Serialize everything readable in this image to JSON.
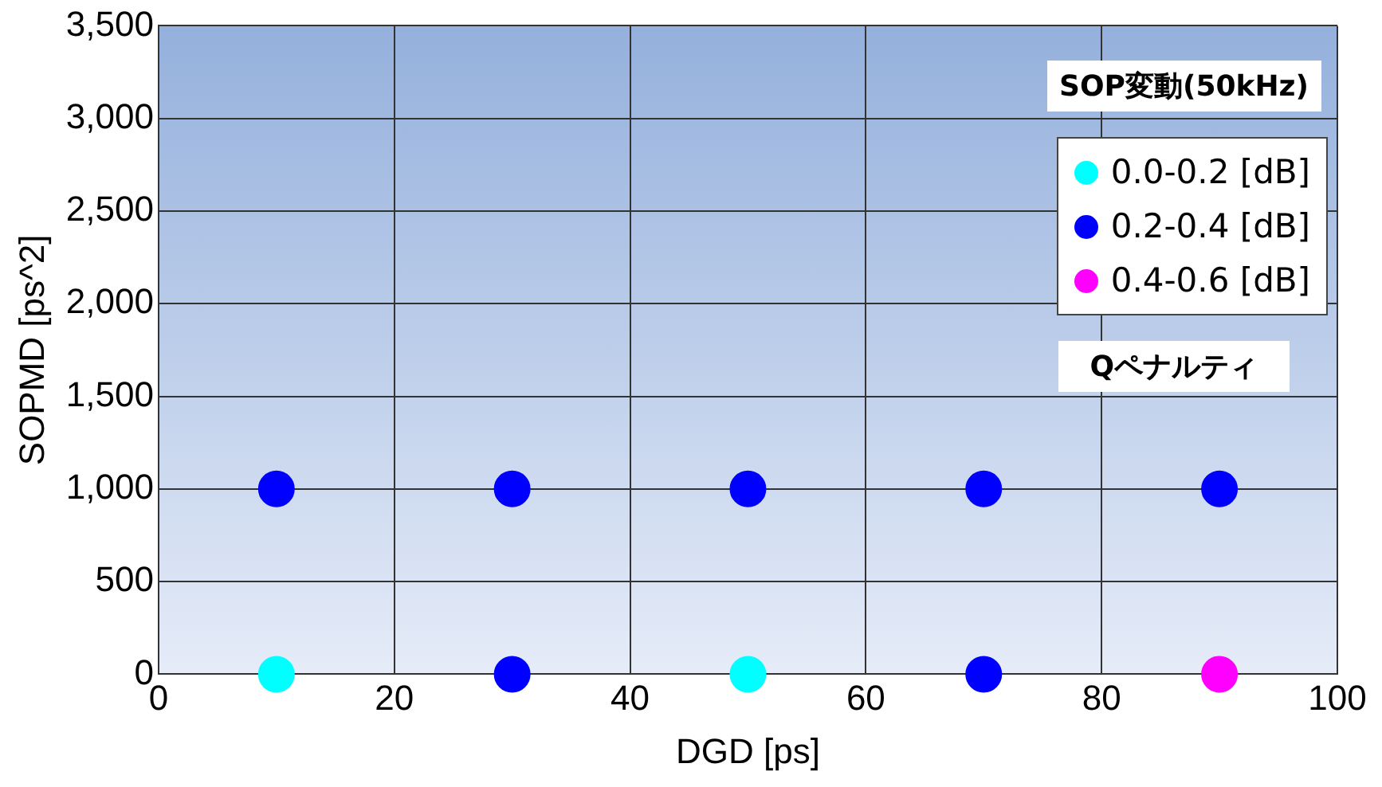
{
  "chart_data": {
    "type": "scatter",
    "xlabel": "DGD [ps]",
    "ylabel": "SOPMD [ps^2]",
    "annotations": [
      "SOP変動(50kHz)"
    ],
    "legend_title": "Qペナルティ",
    "series": [
      {
        "name": "0.0-0.2 [dB]",
        "color": "#00ffff",
        "x": [
          10,
          50
        ],
        "values": [
          0,
          0
        ]
      },
      {
        "name": "0.2-0.4 [dB]",
        "color": "#0000ff",
        "x": [
          10,
          30,
          50,
          70,
          90,
          30,
          70
        ],
        "values": [
          1000,
          1000,
          1000,
          1000,
          1000,
          0,
          0
        ]
      },
      {
        "name": "0.4-0.6 [dB]",
        "color": "#ff00ff",
        "x": [
          90
        ],
        "values": [
          0
        ]
      }
    ],
    "xlim": [
      0,
      100
    ],
    "xticks": [
      0,
      20,
      40,
      60,
      80,
      100
    ],
    "ylim": [
      0,
      3500
    ],
    "yticks": [
      0,
      {
        "value": 500,
        "label": "500"
      },
      {
        "value": 1000,
        "label": "1,000"
      },
      {
        "value": 1500,
        "label": "1,500"
      },
      {
        "value": 2000,
        "label": "2,000"
      },
      {
        "value": 2500,
        "label": "2,500"
      },
      {
        "value": 3000,
        "label": "3,000"
      },
      {
        "value": 3500,
        "label": "3,500"
      }
    ],
    "grid": true,
    "legend": "top right",
    "marker": "circle"
  }
}
